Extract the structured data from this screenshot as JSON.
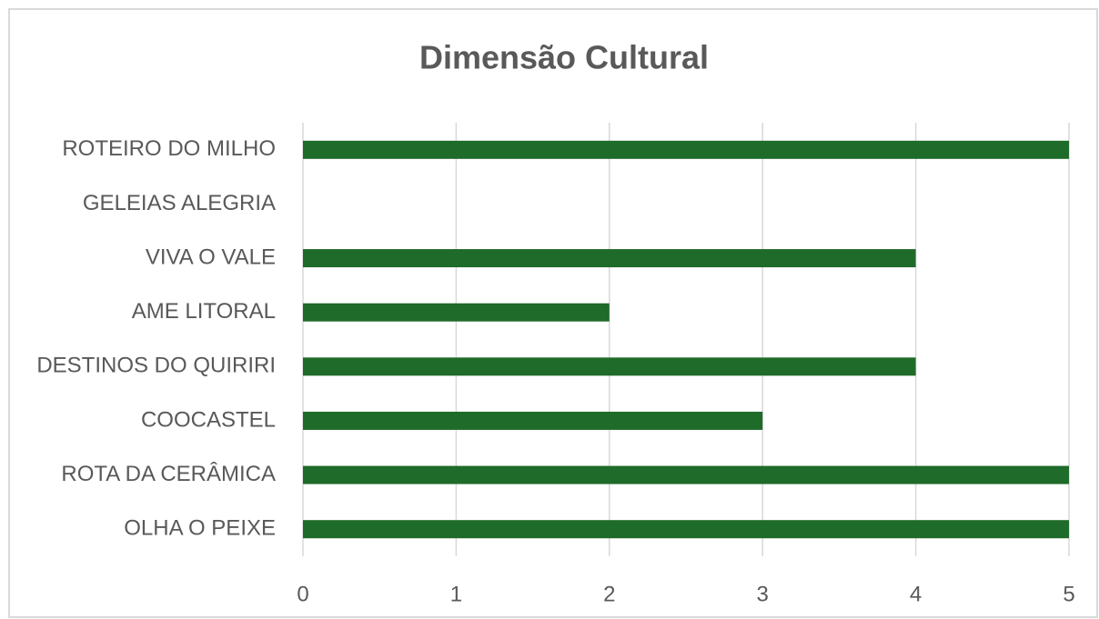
{
  "chart_data": {
    "type": "bar",
    "orientation": "horizontal",
    "title": "Dimensão Cultural",
    "categories": [
      "ROTEIRO DO MILHO",
      "GELEIAS ALEGRIA",
      "VIVA O VALE",
      "AME LITORAL",
      "DESTINOS DO QUIRIRI",
      "COOCASTEL",
      "ROTA DA CERÂMICA",
      "OLHA O PEIXE"
    ],
    "values": [
      5,
      0,
      4,
      2,
      4,
      3,
      5,
      5
    ],
    "color": "#1e6b2a",
    "xlim": [
      0,
      5
    ],
    "xticks": [
      0,
      1,
      2,
      3,
      4,
      5
    ],
    "grid": true
  }
}
